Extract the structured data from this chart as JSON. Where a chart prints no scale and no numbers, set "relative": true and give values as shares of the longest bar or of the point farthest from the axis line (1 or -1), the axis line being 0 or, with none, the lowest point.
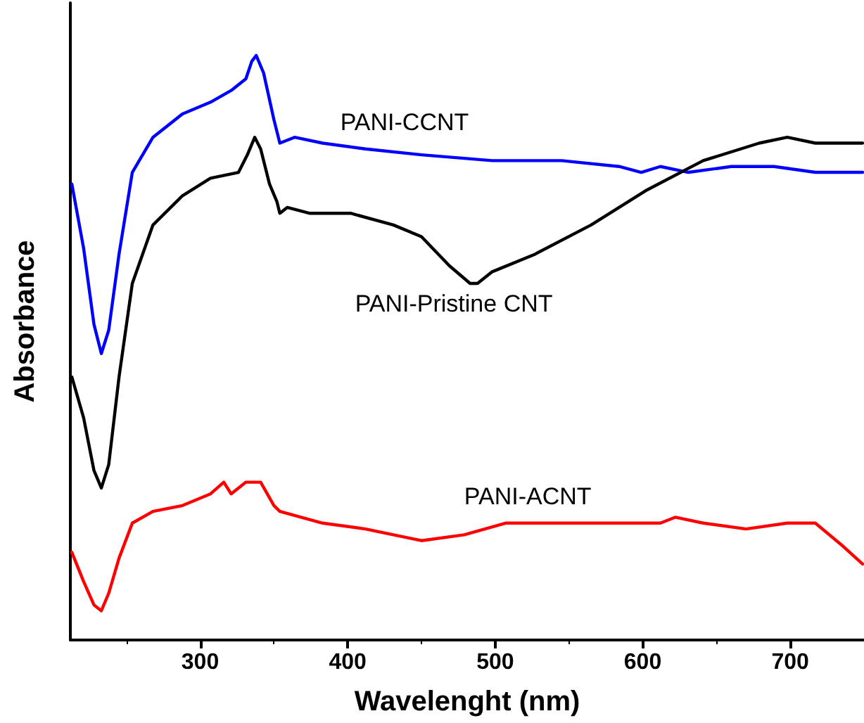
{
  "chart_data": {
    "type": "line",
    "relative": true,
    "xlabel": "Wavelenght (nm)",
    "ylabel": "Absorbance",
    "xlim": [
      212,
      750
    ],
    "xticks": [
      300,
      400,
      500,
      600,
      700
    ],
    "tick_labels": "x",
    "legend": false,
    "grid": false,
    "marker": "none",
    "line_style": "solid",
    "series": [
      {
        "name": "PANI-CCNT",
        "color": "#0000ff",
        "x": [
          213,
          221,
          228,
          233,
          238,
          245,
          254,
          268,
          288,
          307,
          321,
          331,
          335,
          338,
          343,
          350,
          354,
          364,
          383,
          412,
          450,
          498,
          545,
          584,
          599,
          612,
          631,
          660,
          689,
          717,
          749
        ],
        "values": [
          0.78,
          0.67,
          0.54,
          0.49,
          0.53,
          0.66,
          0.8,
          0.86,
          0.9,
          0.92,
          0.94,
          0.96,
          0.99,
          1.0,
          0.97,
          0.89,
          0.85,
          0.86,
          0.85,
          0.84,
          0.83,
          0.82,
          0.82,
          0.81,
          0.8,
          0.81,
          0.8,
          0.81,
          0.81,
          0.8,
          0.8
        ]
      },
      {
        "name": "PANI-Pristine CNT",
        "color": "#000000",
        "x": [
          213,
          221,
          228,
          233,
          238,
          245,
          254,
          268,
          288,
          307,
          326,
          332,
          337,
          341,
          347,
          352,
          354,
          359,
          374,
          402,
          431,
          450,
          469,
          483,
          488,
          498,
          527,
          565,
          603,
          641,
          679,
          698,
          717,
          736,
          749
        ],
        "values": [
          0.45,
          0.38,
          0.29,
          0.26,
          0.3,
          0.45,
          0.61,
          0.71,
          0.76,
          0.79,
          0.8,
          0.83,
          0.86,
          0.84,
          0.78,
          0.75,
          0.73,
          0.74,
          0.73,
          0.73,
          0.71,
          0.69,
          0.64,
          0.61,
          0.61,
          0.63,
          0.66,
          0.71,
          0.77,
          0.82,
          0.85,
          0.86,
          0.85,
          0.85,
          0.85
        ]
      },
      {
        "name": "PANI-ACNT",
        "color": "#ff0000",
        "x": [
          213,
          221,
          228,
          233,
          238,
          245,
          254,
          268,
          288,
          307,
          316,
          321,
          331,
          341,
          350,
          354,
          383,
          412,
          450,
          479,
          507,
          545,
          593,
          612,
          622,
          641,
          670,
          698,
          717,
          736,
          749
        ],
        "values": [
          0.15,
          0.1,
          0.06,
          0.05,
          0.08,
          0.14,
          0.2,
          0.22,
          0.23,
          0.25,
          0.27,
          0.25,
          0.27,
          0.27,
          0.23,
          0.22,
          0.2,
          0.19,
          0.17,
          0.18,
          0.2,
          0.2,
          0.2,
          0.2,
          0.21,
          0.2,
          0.19,
          0.2,
          0.2,
          0.16,
          0.13
        ]
      }
    ]
  }
}
